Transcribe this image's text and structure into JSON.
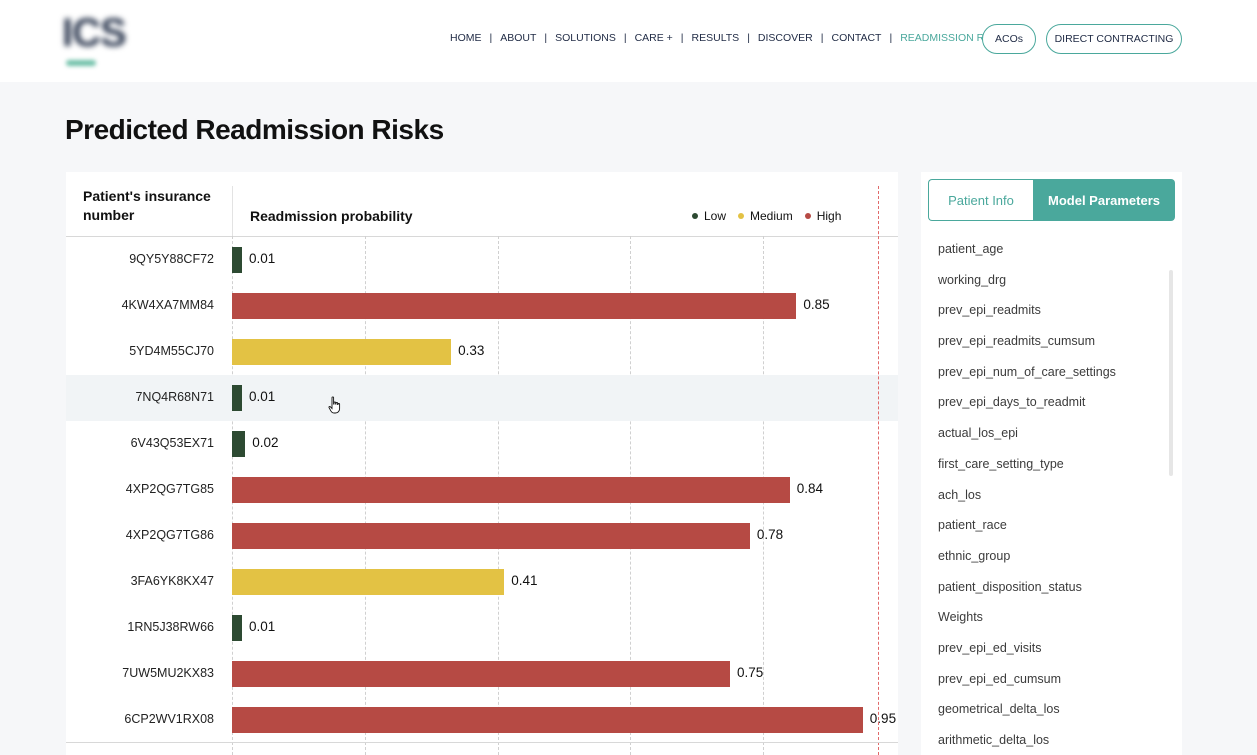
{
  "header": {
    "logo_text": "ICS",
    "nav": [
      "HOME",
      "ABOUT",
      "SOLUTIONS",
      "CARE +",
      "RESULTS",
      "DISCOVER",
      "CONTACT",
      "READMISSION RISKS"
    ],
    "nav_active": "READMISSION RISKS",
    "buttons": {
      "acos": "ACOs",
      "direct_contracting": "DIRECT CONTRACTING"
    }
  },
  "page": {
    "title": "Predicted Readmission Risks"
  },
  "table": {
    "col_id_header": "Patient's insurance number",
    "col_prob_header": "Readmission probability",
    "legend": [
      {
        "label": "Low",
        "color": "#2d4a32"
      },
      {
        "label": "Medium",
        "color": "#e3c244"
      },
      {
        "label": "High",
        "color": "#b64a44"
      }
    ]
  },
  "chart_data": {
    "type": "bar",
    "orientation": "horizontal",
    "title": "Predicted Readmission Risks",
    "xlabel": "Readmission probability",
    "ylabel": "Patient's insurance number",
    "xlim": [
      0,
      1
    ],
    "grid": true,
    "legend_placement": "top-right",
    "categories": [
      "9QY5Y88CF72",
      "4KW4XA7MM84",
      "5YD4M55CJ70",
      "7NQ4R68N71",
      "6V43Q53EX71",
      "4XP2QG7TG85",
      "4XP2QG7TG86",
      "3FA6YK8KX47",
      "1RN5J38RW66",
      "7UW5MU2KX83",
      "6CP2WV1RX08"
    ],
    "values": [
      0.01,
      0.85,
      0.33,
      0.01,
      0.02,
      0.84,
      0.78,
      0.41,
      0.01,
      0.75,
      0.95
    ],
    "value_labels": [
      "0.01",
      "0.85",
      "0.33",
      "0.01",
      "0.02",
      "0.84",
      "0.78",
      "0.41",
      "0.01",
      "0.75",
      "0.95"
    ],
    "risk_levels": [
      "Low",
      "High",
      "Medium",
      "Low",
      "Low",
      "High",
      "High",
      "Medium",
      "Low",
      "High",
      "High"
    ],
    "colors": {
      "Low": "#2d4a32",
      "Medium": "#e3c244",
      "High": "#b64a44"
    }
  },
  "side_panel": {
    "tabs": [
      "Patient Info",
      "Model Parameters"
    ],
    "active_tab": "Model Parameters",
    "parameters": [
      "patient_age",
      "working_drg",
      "prev_epi_readmits",
      "prev_epi_readmits_cumsum",
      "prev_epi_num_of_care_settings",
      "prev_epi_days_to_readmit",
      "actual_los_epi",
      "first_care_setting_type",
      "ach_los",
      "patient_race",
      "ethnic_group",
      "patient_disposition_status",
      "Weights",
      "prev_epi_ed_visits",
      "prev_epi_ed_cumsum",
      "geometrical_delta_los",
      "arithmetic_delta_los"
    ]
  }
}
